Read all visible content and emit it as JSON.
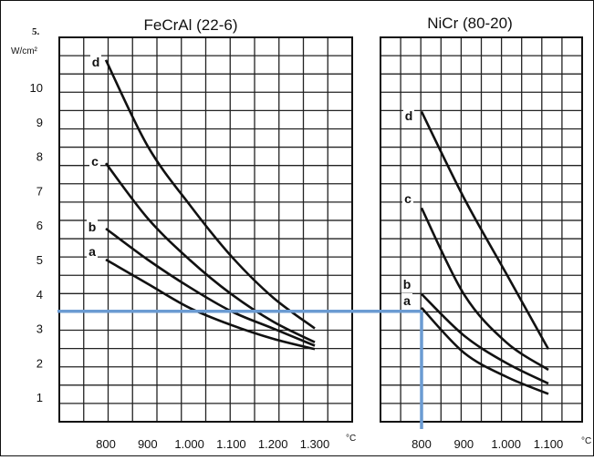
{
  "figure_number": "5.",
  "overlay_color": "#6b9bd2",
  "chart_data": [
    {
      "type": "line",
      "title": "FeCrAl (22-6)",
      "ylabel": "W/cm²",
      "xunit": "°C",
      "xlim": [
        740,
        1370
      ],
      "ylim": [
        0,
        11.5
      ],
      "xticks": [
        800,
        900,
        1000,
        1100,
        1200,
        1300
      ],
      "xtick_labels": [
        "800",
        "900",
        "1.000",
        "1.100",
        "1.200",
        "1.300"
      ],
      "yticks": [
        1,
        2,
        3,
        4,
        5,
        6,
        7,
        8,
        9,
        10
      ],
      "yticklabels": [
        "1",
        "2",
        "3",
        "4",
        "5",
        "6",
        "7",
        "8",
        "9",
        "10"
      ],
      "grid": true,
      "series": [
        {
          "name": "d",
          "x": [
            800,
            900,
            1000,
            1100,
            1200,
            1300
          ],
          "y": [
            10.8,
            8.3,
            6.6,
            5.1,
            3.9,
            3.0
          ]
        },
        {
          "name": "c",
          "x": [
            800,
            900,
            1000,
            1100,
            1200,
            1300
          ],
          "y": [
            7.8,
            6.2,
            5.0,
            4.0,
            3.2,
            2.6
          ]
        },
        {
          "name": "b",
          "x": [
            800,
            900,
            1000,
            1100,
            1200,
            1300
          ],
          "y": [
            5.9,
            5.0,
            4.2,
            3.5,
            3.0,
            2.5
          ]
        },
        {
          "name": "a",
          "x": [
            800,
            900,
            1000,
            1100,
            1200,
            1300
          ],
          "y": [
            5.0,
            4.3,
            3.6,
            3.1,
            2.7,
            2.4
          ]
        }
      ]
    },
    {
      "type": "line",
      "title": "NiCr (80-20)",
      "xunit": "°C",
      "xlim": [
        740,
        1130
      ],
      "ylim": [
        0,
        11.5
      ],
      "xticks": [
        800,
        900,
        1000,
        1100
      ],
      "xtick_labels": [
        "800",
        "900",
        "1.000",
        "1.100"
      ],
      "grid": true,
      "series": [
        {
          "name": "d",
          "x": [
            800,
            900,
            1000,
            1100
          ],
          "y": [
            9.3,
            6.8,
            4.6,
            2.4
          ]
        },
        {
          "name": "c",
          "x": [
            800,
            900,
            1000,
            1100
          ],
          "y": [
            6.5,
            4.0,
            2.6,
            1.8
          ]
        },
        {
          "name": "b",
          "x": [
            800,
            900,
            1000,
            1100
          ],
          "y": [
            4.0,
            2.8,
            2.0,
            1.4
          ]
        },
        {
          "name": "a",
          "x": [
            800,
            900,
            1000,
            1100
          ],
          "y": [
            3.6,
            2.3,
            1.6,
            1.1
          ]
        }
      ]
    }
  ]
}
